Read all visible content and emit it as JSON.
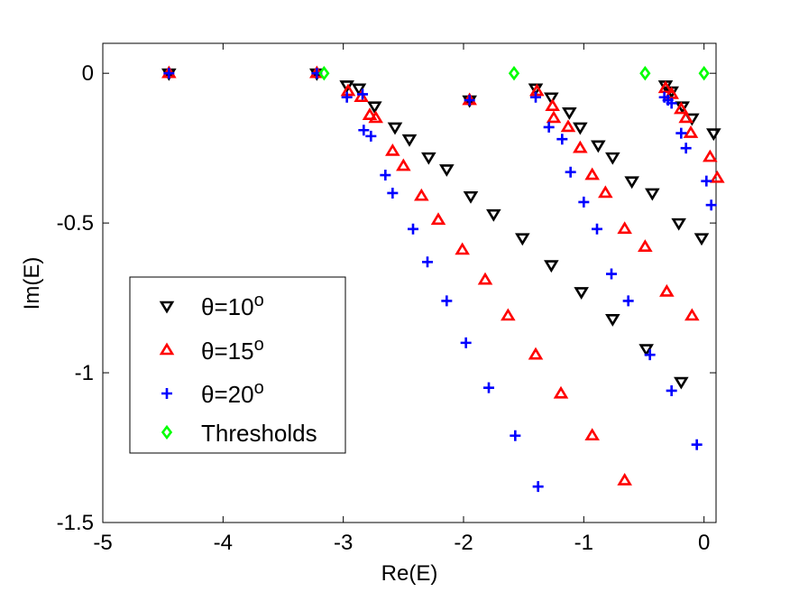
{
  "chart_data": {
    "type": "scatter",
    "title": "",
    "xlabel": "Re(E)",
    "ylabel": "Im(E)",
    "xlim": [
      -5,
      0.1
    ],
    "ylim": [
      -1.5,
      0.1
    ],
    "xticks": [
      -5,
      -4,
      -3,
      -2,
      -1,
      0
    ],
    "yticks": [
      0,
      -0.5,
      -1,
      -1.5
    ],
    "xtick_labels": [
      "-5",
      "-4",
      "-3",
      "-2",
      "-1",
      "0"
    ],
    "ytick_labels": [
      "0",
      "-0.5",
      "-1",
      "-1.5"
    ],
    "grid": false,
    "legend_position": "bottom-left",
    "series": [
      {
        "name": "θ=10°",
        "legend_base": "θ=10",
        "legend_sup": "o",
        "marker": "triangle-down",
        "color": "#000000",
        "points": [
          [
            -4.45,
            0.0
          ],
          [
            -3.22,
            0.0
          ],
          [
            -2.97,
            -0.04
          ],
          [
            -2.87,
            -0.05
          ],
          [
            -2.74,
            -0.11
          ],
          [
            -2.57,
            -0.18
          ],
          [
            -2.45,
            -0.22
          ],
          [
            -2.29,
            -0.28
          ],
          [
            -2.14,
            -0.32
          ],
          [
            -1.94,
            -0.41
          ],
          [
            -1.75,
            -0.47
          ],
          [
            -1.51,
            -0.55
          ],
          [
            -1.27,
            -0.64
          ],
          [
            -1.02,
            -0.73
          ],
          [
            -0.76,
            -0.82
          ],
          [
            -0.48,
            -0.92
          ],
          [
            -0.19,
            -1.03
          ],
          [
            -1.95,
            -0.09
          ],
          [
            -1.4,
            -0.05
          ],
          [
            -1.27,
            -0.08
          ],
          [
            -1.12,
            -0.13
          ],
          [
            -1.03,
            -0.18
          ],
          [
            -0.88,
            -0.24
          ],
          [
            -0.76,
            -0.28
          ],
          [
            -0.6,
            -0.36
          ],
          [
            -0.43,
            -0.4
          ],
          [
            -0.21,
            -0.5
          ],
          [
            -0.02,
            -0.55
          ],
          [
            -0.32,
            -0.04
          ],
          [
            -0.27,
            -0.06
          ],
          [
            -0.18,
            -0.11
          ],
          [
            -0.1,
            -0.15
          ],
          [
            0.08,
            -0.2
          ]
        ]
      },
      {
        "name": "θ=15°",
        "legend_base": "θ=15",
        "legend_sup": "o",
        "marker": "triangle-up",
        "color": "#ff0000",
        "points": [
          [
            -4.45,
            0.0
          ],
          [
            -3.22,
            0.0
          ],
          [
            -2.96,
            -0.06
          ],
          [
            -2.85,
            -0.08
          ],
          [
            -2.78,
            -0.14
          ],
          [
            -2.73,
            -0.15
          ],
          [
            -2.59,
            -0.26
          ],
          [
            -2.5,
            -0.31
          ],
          [
            -2.35,
            -0.41
          ],
          [
            -2.21,
            -0.49
          ],
          [
            -2.01,
            -0.59
          ],
          [
            -1.82,
            -0.69
          ],
          [
            -1.63,
            -0.81
          ],
          [
            -1.4,
            -0.94
          ],
          [
            -1.19,
            -1.07
          ],
          [
            -0.93,
            -1.21
          ],
          [
            -0.66,
            -1.36
          ],
          [
            -1.95,
            -0.09
          ],
          [
            -1.39,
            -0.06
          ],
          [
            -1.26,
            -0.11
          ],
          [
            -1.25,
            -0.15
          ],
          [
            -1.13,
            -0.18
          ],
          [
            -1.03,
            -0.25
          ],
          [
            -0.93,
            -0.34
          ],
          [
            -0.82,
            -0.4
          ],
          [
            -0.66,
            -0.52
          ],
          [
            -0.49,
            -0.58
          ],
          [
            -0.31,
            -0.73
          ],
          [
            -0.1,
            -0.81
          ],
          [
            -0.32,
            -0.05
          ],
          [
            -0.27,
            -0.07
          ],
          [
            -0.19,
            -0.12
          ],
          [
            -0.15,
            -0.15
          ],
          [
            -0.11,
            -0.2
          ],
          [
            0.05,
            -0.28
          ],
          [
            0.11,
            -0.35
          ]
        ]
      },
      {
        "name": "θ=20°",
        "legend_base": "θ=20",
        "legend_sup": "o",
        "marker": "plus",
        "color": "#0000ff",
        "points": [
          [
            -4.45,
            0.0
          ],
          [
            -3.22,
            0.0
          ],
          [
            -2.97,
            -0.08
          ],
          [
            -2.84,
            -0.07
          ],
          [
            -2.83,
            -0.19
          ],
          [
            -2.77,
            -0.21
          ],
          [
            -2.65,
            -0.34
          ],
          [
            -2.59,
            -0.4
          ],
          [
            -2.42,
            -0.52
          ],
          [
            -2.3,
            -0.63
          ],
          [
            -2.14,
            -0.76
          ],
          [
            -1.98,
            -0.9
          ],
          [
            -1.79,
            -1.05
          ],
          [
            -1.57,
            -1.21
          ],
          [
            -1.38,
            -1.38
          ],
          [
            -1.95,
            -0.09
          ],
          [
            -1.4,
            -0.08
          ],
          [
            -1.29,
            -0.18
          ],
          [
            -1.18,
            -0.22
          ],
          [
            -1.11,
            -0.33
          ],
          [
            -1.0,
            -0.43
          ],
          [
            -0.89,
            -0.52
          ],
          [
            -0.77,
            -0.67
          ],
          [
            -0.63,
            -0.76
          ],
          [
            -0.45,
            -0.94
          ],
          [
            -0.27,
            -1.06
          ],
          [
            -0.06,
            -1.24
          ],
          [
            -0.33,
            -0.08
          ],
          [
            -0.3,
            -0.09
          ],
          [
            -0.27,
            -0.1
          ],
          [
            -0.19,
            -0.2
          ],
          [
            -0.15,
            -0.25
          ],
          [
            0.02,
            -0.36
          ],
          [
            0.06,
            -0.44
          ]
        ]
      },
      {
        "name": "Thresholds",
        "legend_base": "Thresholds",
        "legend_sup": "",
        "marker": "diamond",
        "color": "#00ff00",
        "points": [
          [
            -3.16,
            0.0
          ],
          [
            -1.58,
            0.0
          ],
          [
            -0.49,
            0.0
          ],
          [
            0.0,
            0.0
          ]
        ]
      }
    ]
  }
}
